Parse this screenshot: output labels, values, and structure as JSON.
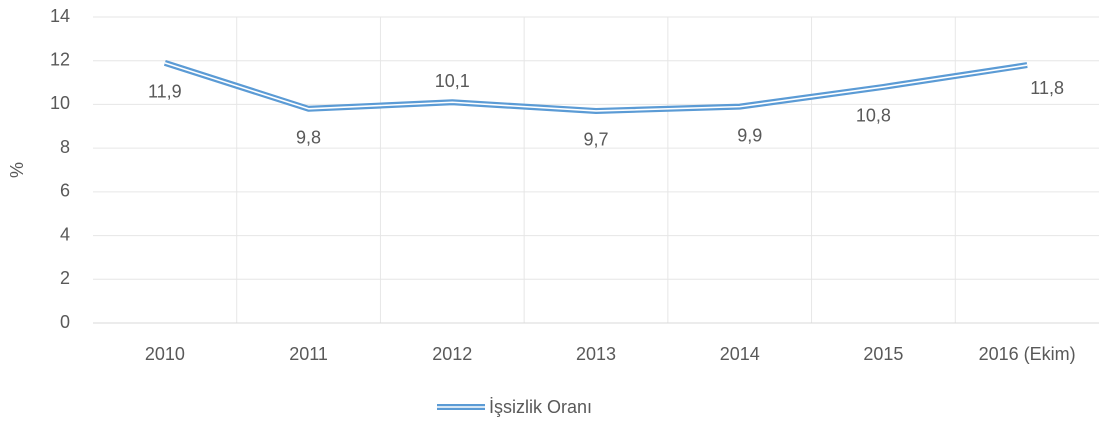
{
  "chart_data": {
    "type": "line",
    "y_label": "%",
    "categories": [
      "2010",
      "2011",
      "2012",
      "2013",
      "2014",
      "2015",
      "2016 (Ekim)"
    ],
    "series": [
      {
        "name": "İşsizlik Oranı",
        "color": "#5b9bd5",
        "values": [
          11.9,
          9.8,
          10.1,
          9.7,
          9.9,
          10.8,
          11.8
        ],
        "value_labels": [
          "11,9",
          "9,8",
          "10,1",
          "9,7",
          "9,9",
          "10,8",
          "11,8"
        ]
      }
    ],
    "ylim": [
      0,
      14
    ],
    "yticks": [
      0,
      2,
      4,
      6,
      8,
      10,
      12,
      14
    ],
    "grid": true,
    "legend": "bottom"
  }
}
